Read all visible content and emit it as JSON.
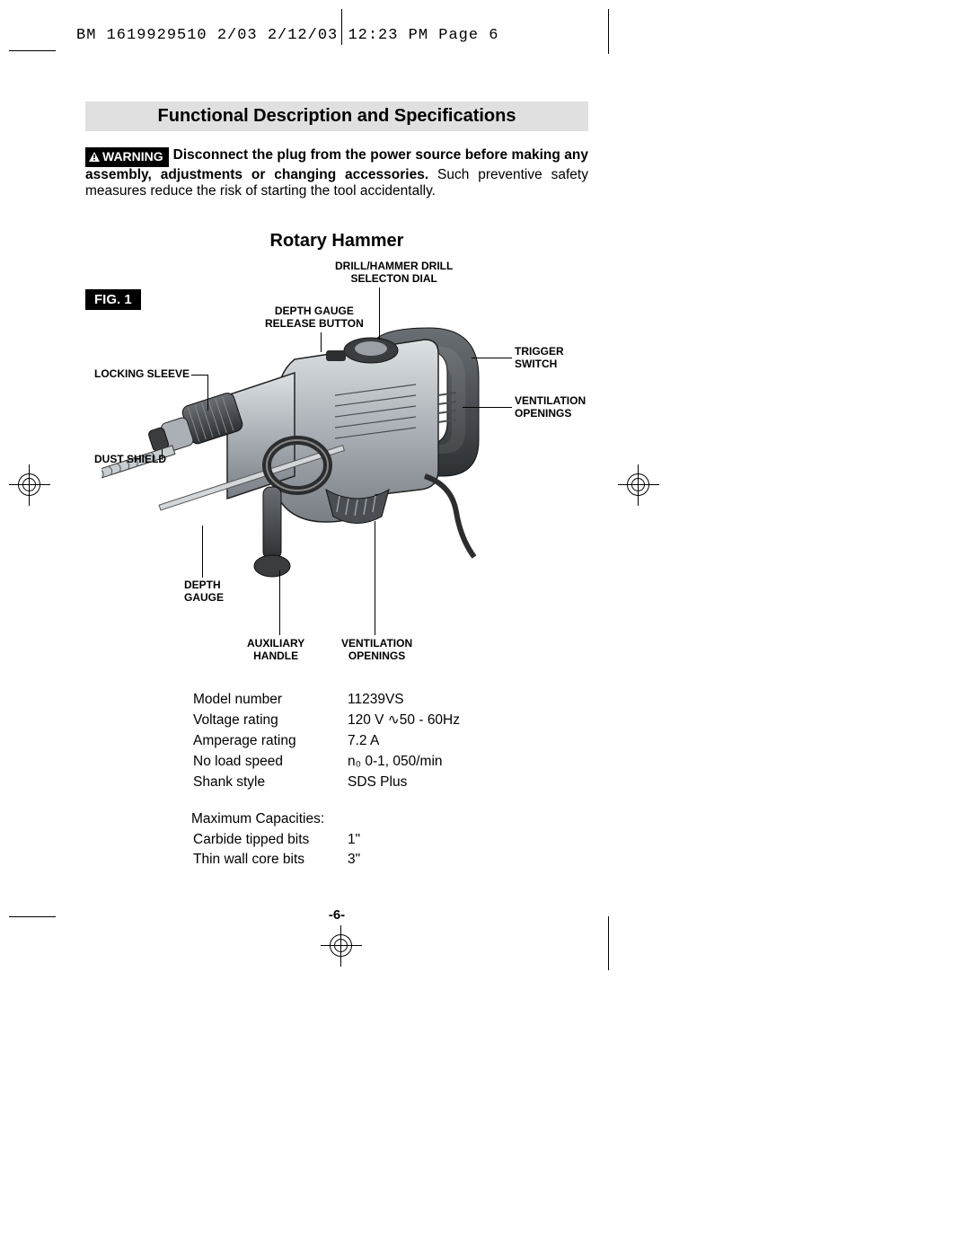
{
  "header": "BM 1619929510 2/03  2/12/03  12:23 PM  Page 6",
  "section_title": "Functional Description and Specifications",
  "warning": {
    "tag": "WARNING",
    "bold_text": "Disconnect the plug from the power source before making any assembly, adjustments or changing accessories.",
    "rest": " Such preventive safety measures reduce the risk of starting the tool accidentally."
  },
  "subheading": "Rotary Hammer",
  "figure": {
    "label": "FIG. 1",
    "callouts": {
      "drill_dial": "DRILL/HAMMER DRILL\nSELECTON DIAL",
      "depth_release": "DEPTH GAUGE\nRELEASE  BUTTON",
      "trigger": "TRIGGER\nSWITCH",
      "locking_sleeve": "LOCKING SLEEVE",
      "vent_top": "VENTILATION\nOPENINGS",
      "dust_shield": "DUST SHIELD",
      "depth_gauge": "DEPTH\nGAUGE",
      "aux_handle": "AUXILIARY\nHANDLE",
      "vent_bottom": "VENTILATION\nOPENINGS"
    }
  },
  "specs": {
    "rows": [
      {
        "label": "Model number",
        "value": "11239VS"
      },
      {
        "label": "Voltage rating",
        "value": "120 V   ∿50 - 60Hz"
      },
      {
        "label": "Amperage rating",
        "value": "7.2 A"
      },
      {
        "label": "No load speed",
        "value": "n₀ 0-1, 050/min"
      },
      {
        "label": "Shank style",
        "value": "SDS Plus"
      }
    ],
    "capacities_heading": "Maximum Capacities:",
    "capacity_rows": [
      {
        "label": "Carbide tipped bits",
        "value": "1\""
      },
      {
        "label": "Thin wall core bits",
        "value": "3\""
      }
    ]
  },
  "page_number": "-6-",
  "colors": {
    "header_bg": "#e0e0e0",
    "ink": "#000000",
    "paper": "#ffffff",
    "tool_light": "#c8cdd1",
    "tool_mid": "#9aa0a5",
    "tool_dark": "#5a5f64",
    "tool_black": "#2b2d2f"
  }
}
